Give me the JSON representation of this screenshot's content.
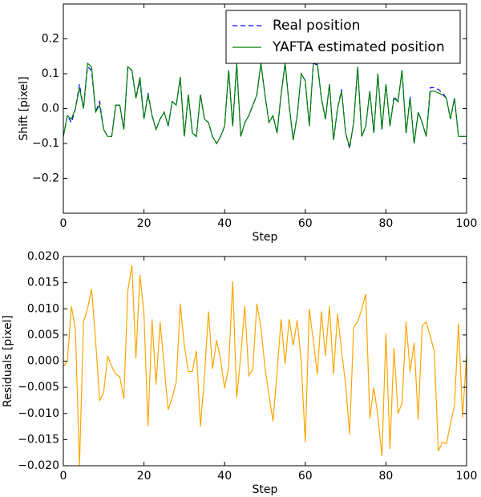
{
  "chart_data": [
    {
      "type": "line",
      "ylabel": "Shift [pixel]",
      "xlabel": "Step",
      "x": [
        0,
        1,
        2,
        3,
        4,
        5,
        6,
        7,
        8,
        9,
        10,
        11,
        12,
        13,
        14,
        15,
        16,
        17,
        18,
        19,
        20,
        21,
        22,
        23,
        24,
        25,
        26,
        27,
        28,
        29,
        30,
        31,
        32,
        33,
        34,
        35,
        36,
        37,
        38,
        39,
        40,
        41,
        42,
        43,
        44,
        45,
        46,
        47,
        48,
        49,
        50,
        51,
        52,
        53,
        54,
        55,
        56,
        57,
        58,
        59,
        60,
        61,
        62,
        63,
        64,
        65,
        66,
        67,
        68,
        69,
        70,
        71,
        72,
        73,
        74,
        75,
        76,
        77,
        78,
        79,
        80,
        81,
        82,
        83,
        84,
        85,
        86,
        87,
        88,
        89,
        90,
        91,
        92,
        93,
        94,
        95,
        96,
        97,
        98,
        99,
        100
      ],
      "series": [
        {
          "name": "Real position",
          "color": "#0000ff",
          "dash": true,
          "values": [
            -0.08,
            -0.02,
            -0.04,
            0.0,
            0.07,
            0.0,
            0.12,
            0.11,
            -0.01,
            0.02,
            -0.06,
            -0.08,
            -0.08,
            0.01,
            0.01,
            -0.06,
            0.12,
            0.11,
            0.03,
            0.08,
            -0.03,
            0.045,
            -0.02,
            -0.06,
            -0.03,
            -0.01,
            -0.05,
            0.02,
            0.01,
            0.09,
            -0.08,
            0.04,
            -0.07,
            -0.08,
            0.04,
            -0.03,
            -0.04,
            -0.08,
            -0.1,
            -0.08,
            -0.05,
            0.11,
            -0.05,
            0.13,
            -0.08,
            -0.04,
            -0.02,
            0.01,
            0.04,
            0.13,
            0.04,
            -0.04,
            -0.02,
            -0.07,
            0.04,
            0.13,
            0.01,
            -0.09,
            -0.02,
            0.1,
            0.08,
            -0.05,
            0.13,
            0.125,
            0.03,
            -0.03,
            0.07,
            -0.09,
            0.0,
            0.055,
            -0.07,
            -0.115,
            -0.04,
            0.12,
            -0.08,
            -0.05,
            0.05,
            -0.07,
            0.1,
            -0.06,
            0.07,
            -0.05,
            0.035,
            0.02,
            0.11,
            -0.07,
            0.035,
            -0.1,
            -0.01,
            -0.04,
            -0.08,
            0.06,
            0.06,
            0.055,
            0.045,
            0.03,
            -0.03,
            0.03,
            -0.08,
            -0.08,
            -0.08
          ]
        },
        {
          "name": "YAFTA estimated position",
          "color": "#008000",
          "dash": false,
          "values": [
            -0.08,
            -0.02,
            -0.03,
            0.0,
            0.06,
            0.0,
            0.13,
            0.12,
            -0.01,
            0.01,
            -0.06,
            -0.08,
            -0.08,
            0.01,
            0.01,
            -0.06,
            0.12,
            0.11,
            0.03,
            0.09,
            -0.03,
            0.04,
            -0.02,
            -0.06,
            -0.03,
            -0.01,
            -0.05,
            0.02,
            0.01,
            0.09,
            -0.08,
            0.04,
            -0.07,
            -0.08,
            0.04,
            -0.03,
            -0.04,
            -0.08,
            -0.1,
            -0.08,
            -0.05,
            0.11,
            -0.05,
            0.13,
            -0.08,
            -0.04,
            -0.02,
            0.01,
            0.04,
            0.13,
            0.04,
            -0.04,
            -0.02,
            -0.07,
            0.04,
            0.13,
            0.01,
            -0.09,
            -0.02,
            0.1,
            0.08,
            -0.05,
            0.13,
            0.13,
            0.03,
            -0.03,
            0.07,
            -0.09,
            0.0,
            0.05,
            -0.07,
            -0.11,
            -0.04,
            0.12,
            -0.08,
            -0.05,
            0.05,
            -0.07,
            0.1,
            -0.06,
            0.07,
            -0.05,
            0.03,
            0.02,
            0.11,
            -0.07,
            0.03,
            -0.1,
            -0.01,
            -0.04,
            -0.08,
            0.05,
            0.05,
            0.045,
            0.04,
            0.03,
            -0.03,
            0.03,
            -0.08,
            -0.08,
            -0.08
          ]
        }
      ],
      "xlim": [
        0,
        100
      ],
      "xticks": [
        0,
        20,
        40,
        60,
        80,
        100
      ],
      "ylim": [
        -0.3,
        0.3
      ],
      "yticks": [
        {
          "value": -0.2,
          "label": "−0.2"
        },
        {
          "value": -0.1,
          "label": "−0.1"
        },
        {
          "value": 0,
          "label": "0.0"
        },
        {
          "value": 0.1,
          "label": "0.1"
        },
        {
          "value": 0.2,
          "label": "0.2"
        }
      ],
      "legend": "upper right"
    },
    {
      "type": "line",
      "ylabel": "Residuals [pixel]",
      "xlabel": "Step",
      "x": [
        0,
        1,
        2,
        3,
        4,
        5,
        6,
        7,
        8,
        9,
        10,
        11,
        12,
        13,
        14,
        15,
        16,
        17,
        18,
        19,
        20,
        21,
        22,
        23,
        24,
        25,
        26,
        27,
        28,
        29,
        30,
        31,
        32,
        33,
        34,
        35,
        36,
        37,
        38,
        39,
        40,
        41,
        42,
        43,
        44,
        45,
        46,
        47,
        48,
        49,
        50,
        51,
        52,
        53,
        54,
        55,
        56,
        57,
        58,
        59,
        60,
        61,
        62,
        63,
        64,
        65,
        66,
        67,
        68,
        69,
        70,
        71,
        72,
        73,
        74,
        75,
        76,
        77,
        78,
        79,
        80,
        81,
        82,
        83,
        84,
        85,
        86,
        87,
        88,
        89,
        90,
        91,
        92,
        93,
        94,
        95,
        96,
        97,
        98,
        99,
        100
      ],
      "series": [
        {
          "name": null,
          "color": "#ffa500",
          "dash": false,
          "values": [
            -0.001,
            0.0,
            0.0105,
            0.006,
            -0.02,
            0.0075,
            0.01,
            0.0138,
            0.004,
            -0.0075,
            -0.006,
            0.001,
            -0.001,
            -0.0025,
            -0.003,
            -0.0072,
            0.0135,
            0.0183,
            0.0005,
            0.0165,
            0.009,
            -0.0125,
            0.008,
            -0.0045,
            0.0075,
            -0.001,
            -0.0093,
            -0.007,
            -0.004,
            0.011,
            0.003,
            -0.002,
            -0.002,
            0.002,
            -0.0125,
            -0.003,
            0.0095,
            -0.0015,
            0.004,
            0.0003,
            -0.0052,
            -0.001,
            0.0152,
            -0.007,
            0.001,
            0.0105,
            -0.0028,
            -0.0015,
            0.011,
            0.0065,
            -0.0012,
            -0.0065,
            -0.0115,
            -0.002,
            0.008,
            -0.0005,
            0.008,
            0.003,
            0.0078,
            -0.0002,
            -0.0155,
            0.01,
            0.0038,
            -0.0025,
            0.0095,
            0.001,
            0.0105,
            -0.0025,
            0.009,
            0.002,
            -0.0045,
            -0.014,
            0.0065,
            0.0075,
            0.01,
            0.0128,
            -0.011,
            -0.005,
            -0.0105,
            -0.0182,
            0.0053,
            -0.0168,
            0.0025,
            -0.01,
            -0.008,
            0.0075,
            -0.002,
            0.0035,
            -0.0112,
            0.0068,
            0.0075,
            0.0048,
            0.0018,
            -0.0172,
            -0.0155,
            -0.0158,
            -0.012,
            -0.0085,
            0.0072,
            -0.0108,
            0.0012
          ]
        }
      ],
      "xlim": [
        0,
        100
      ],
      "xticks": [
        0,
        20,
        40,
        60,
        80,
        100
      ],
      "ylim": [
        -0.02,
        0.02
      ],
      "yticks": [
        {
          "value": -0.02,
          "label": "−0.020"
        },
        {
          "value": -0.015,
          "label": "−0.015"
        },
        {
          "value": -0.01,
          "label": "−0.010"
        },
        {
          "value": -0.005,
          "label": "−0.005"
        },
        {
          "value": 0,
          "label": "0.000"
        },
        {
          "value": 0.005,
          "label": "0.005"
        },
        {
          "value": 0.01,
          "label": "0.010"
        },
        {
          "value": 0.015,
          "label": "0.015"
        },
        {
          "value": 0.02,
          "label": "0.020"
        }
      ]
    }
  ]
}
